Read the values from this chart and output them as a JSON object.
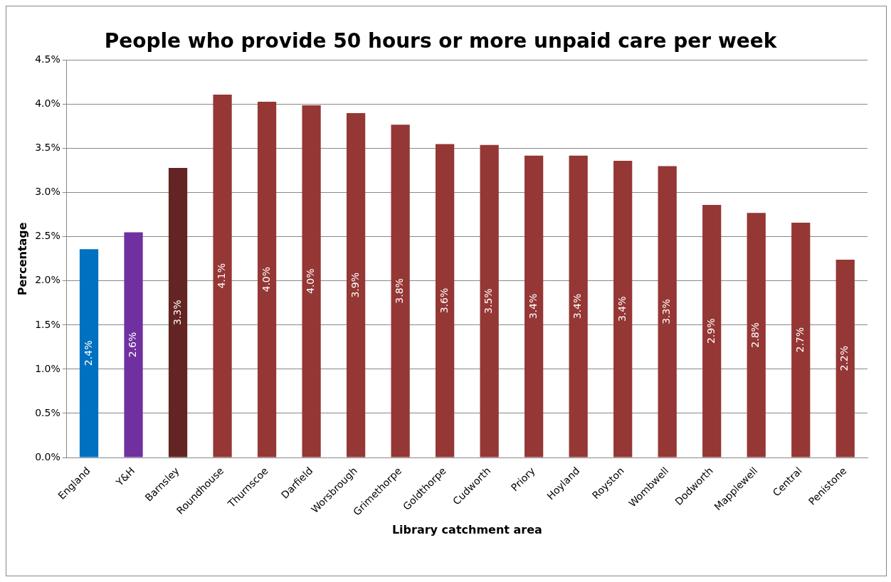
{
  "chart_data": {
    "type": "bar",
    "title": "People who provide 50 hours or more unpaid care per week",
    "xlabel": "Library catchment area",
    "ylabel": "Percentage",
    "categories": [
      "England",
      "Y&H",
      "Barnsley",
      "Roundhouse",
      "Thurnscoe",
      "Darfield",
      "Worsbrough",
      "Grimethorpe",
      "Goldthorpe",
      "Cudworth",
      "Priory",
      "Hoyland",
      "Royston",
      "Wombwell",
      "Dodworth",
      "Mapplewell",
      "Central",
      "Penistone"
    ],
    "values": [
      2.36,
      2.55,
      3.28,
      4.11,
      4.03,
      3.99,
      3.9,
      3.77,
      3.55,
      3.54,
      3.42,
      3.42,
      3.36,
      3.3,
      2.86,
      2.77,
      2.66,
      2.24
    ],
    "colors": [
      "#0070c0",
      "#7030a0",
      "#632523",
      "#953735",
      "#953735",
      "#953735",
      "#953735",
      "#953735",
      "#953735",
      "#953735",
      "#953735",
      "#953735",
      "#953735",
      "#953735",
      "#953735",
      "#953735",
      "#953735",
      "#953735"
    ],
    "value_labels": [
      "2.4%",
      "2.6%",
      "3.3%",
      "4.1%",
      "4.0%",
      "4.0%",
      "3.9%",
      "3.8%",
      "3.6%",
      "3.5%",
      "3.4%",
      "3.4%",
      "3.4%",
      "3.3%",
      "2.9%",
      "2.8%",
      "2.7%",
      "2.2%"
    ],
    "ylim": [
      0,
      4.5
    ],
    "yticks": [
      {
        "value": 0,
        "label": "0.0%"
      },
      {
        "value": 0.5,
        "label": "0.5%"
      },
      {
        "value": 1,
        "label": "1.0%"
      },
      {
        "value": 1.5,
        "label": "1.5%"
      },
      {
        "value": 2,
        "label": "2.0%"
      },
      {
        "value": 2.5,
        "label": "2.5%"
      },
      {
        "value": 3,
        "label": "3.0%"
      },
      {
        "value": 3.5,
        "label": "3.5%"
      },
      {
        "value": 4,
        "label": "4.0%"
      },
      {
        "value": 4.5,
        "label": "4.5%"
      }
    ],
    "grid": "y",
    "legend": false
  }
}
